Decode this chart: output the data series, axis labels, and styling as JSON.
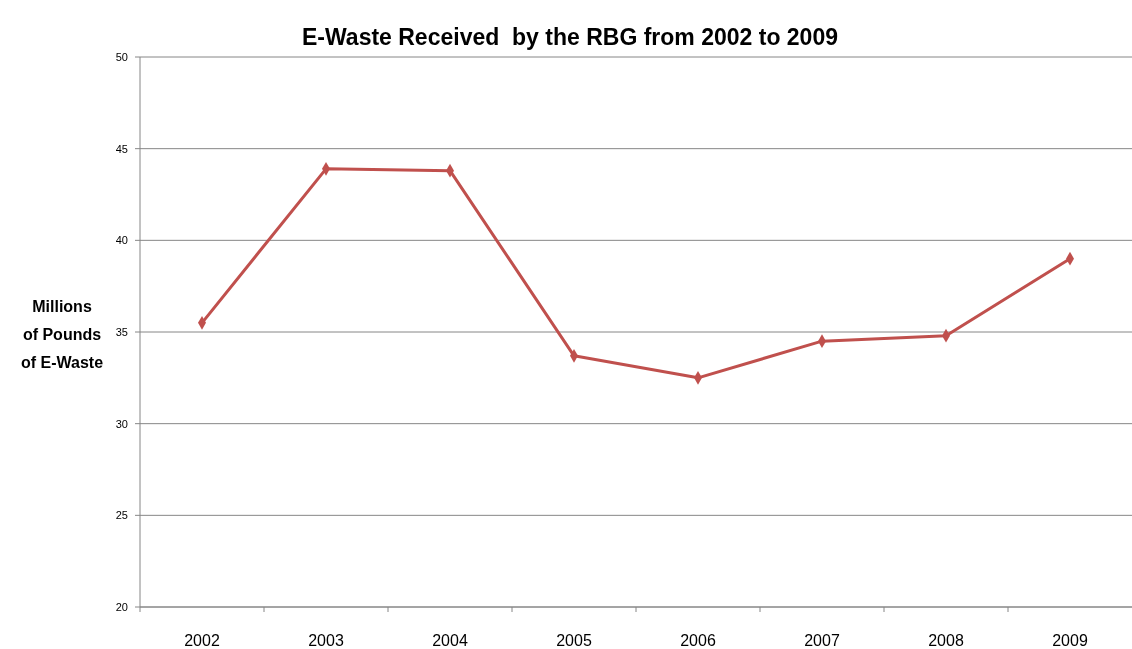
{
  "chart_data": {
    "type": "line",
    "title": "E-Waste Received  by the RBG from 2002 to 2009",
    "ylabel": "Millions of Pounds of E-Waste",
    "categories": [
      "2002",
      "2003",
      "2004",
      "2005",
      "2006",
      "2007",
      "2008",
      "2009"
    ],
    "series": [
      {
        "color": "#c0504d",
        "values": [
          35.5,
          43.9,
          43.8,
          33.7,
          32.5,
          34.5,
          34.8,
          39.0
        ]
      }
    ],
    "ylim": [
      20,
      50
    ],
    "yticks": [
      20,
      25,
      30,
      35,
      40,
      45,
      50
    ],
    "grid": "y",
    "marker": "diamond",
    "line_style": "solid"
  }
}
